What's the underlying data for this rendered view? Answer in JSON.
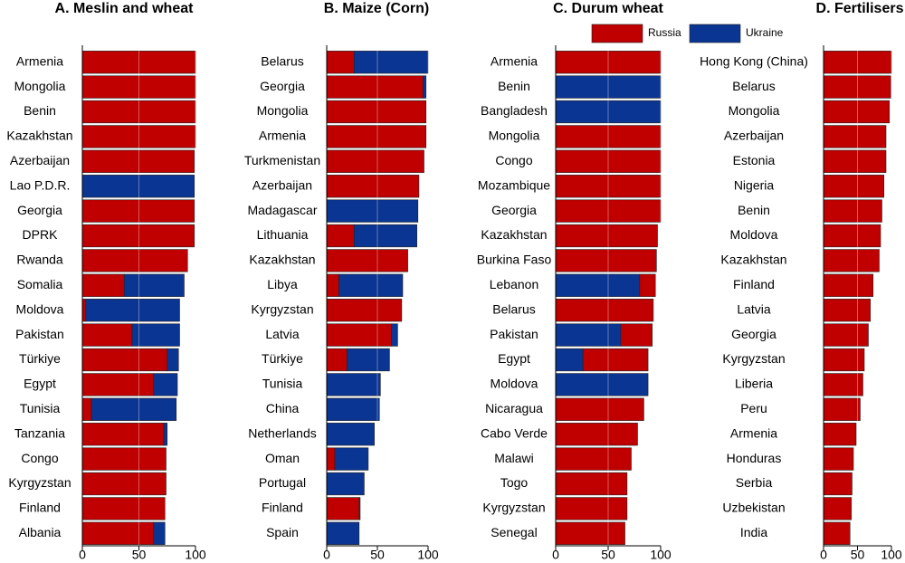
{
  "chart_data": [
    {
      "type": "bar",
      "orientation": "horizontal",
      "stacked": true,
      "title": "A. Meslin and wheat",
      "categories": [
        "Armenia",
        "Mongolia",
        "Benin",
        "Kazakhstan",
        "Azerbaijan",
        "Lao P.D.R.",
        "Georgia",
        "DPRK",
        "Rwanda",
        "Somalia",
        "Moldova",
        "Pakistan",
        "Türkiye",
        "Egypt",
        "Tunisia",
        "Tanzania",
        "Congo",
        "Kyrgyzstan",
        "Finland",
        "Albania"
      ],
      "series": [
        {
          "name": "Russia",
          "color": "#c00000",
          "values": [
            100,
            100,
            100,
            100,
            99,
            0,
            99,
            99,
            93,
            37,
            3,
            44,
            75,
            63,
            8,
            72,
            74,
            74,
            73,
            63
          ]
        },
        {
          "name": "Ukraine",
          "color": "#0b3592",
          "values": [
            0,
            0,
            0,
            0,
            0,
            99,
            0,
            0,
            0,
            53,
            83,
            42,
            10,
            21,
            75,
            3,
            0,
            0,
            0,
            10
          ]
        }
      ],
      "xlim": [
        0,
        100
      ],
      "xticks": [
        0,
        50,
        100
      ],
      "grid": true
    },
    {
      "type": "bar",
      "orientation": "horizontal",
      "stacked": true,
      "title": "B. Maize (Corn)",
      "categories": [
        "Belarus",
        "Georgia",
        "Mongolia",
        "Armenia",
        "Turkmenistan",
        "Azerbaijan",
        "Madagascar",
        "Lithuania",
        "Kazakhstan",
        "Libya",
        "Kyrgyzstan",
        "Latvia",
        "Türkiye",
        "Tunisia",
        "China",
        "Netherlands",
        "Oman",
        "Portugal",
        "Finland",
        "Spain"
      ],
      "series": [
        {
          "name": "Russia",
          "color": "#c00000",
          "values": [
            27,
            95,
            98,
            98,
            96,
            91,
            0,
            27,
            80,
            12,
            74,
            64,
            20,
            0,
            0,
            0,
            8,
            0,
            32,
            0
          ]
        },
        {
          "name": "Ukraine",
          "color": "#0b3592",
          "values": [
            73,
            3,
            0,
            0,
            0,
            0,
            90,
            62,
            0,
            63,
            0,
            6,
            42,
            53,
            52,
            47,
            33,
            37,
            1,
            32
          ]
        }
      ],
      "xlim": [
        0,
        100
      ],
      "xticks": [
        0,
        50,
        100
      ],
      "grid": true
    },
    {
      "type": "bar",
      "orientation": "horizontal",
      "stacked": true,
      "title": "C. Durum wheat",
      "categories": [
        "Armenia",
        "Benin",
        "Bangladesh",
        "Mongolia",
        "Congo",
        "Mozambique",
        "Georgia",
        "Kazakhstan",
        "Burkina Faso",
        "Lebanon",
        "Belarus",
        "Pakistan",
        "Egypt",
        "Moldova",
        "Nicaragua",
        "Cabo Verde",
        "Malawi",
        "Togo",
        "Kyrgyzstan",
        "Senegal"
      ],
      "series": [
        {
          "name": "Ukraine",
          "color": "#0b3592",
          "values": [
            0,
            100,
            100,
            0,
            0,
            0,
            0,
            0,
            0,
            80,
            0,
            62,
            26,
            88,
            0,
            0,
            0,
            0,
            0,
            0
          ]
        },
        {
          "name": "Russia",
          "color": "#c00000",
          "values": [
            100,
            0,
            0,
            100,
            100,
            100,
            100,
            97,
            96,
            15,
            93,
            30,
            62,
            0,
            84,
            78,
            72,
            68,
            68,
            66
          ]
        }
      ],
      "xlim": [
        0,
        100
      ],
      "xticks": [
        0,
        50,
        100
      ],
      "grid": true
    },
    {
      "type": "bar",
      "orientation": "horizontal",
      "stacked": true,
      "title": "D. Fertilisers",
      "categories": [
        "Hong Kong (China)",
        "Belarus",
        "Mongolia",
        "Azerbaijan",
        "Estonia",
        "Nigeria",
        "Benin",
        "Moldova",
        "Kazakhstan",
        "Finland",
        "Latvia",
        "Georgia",
        "Kyrgyzstan",
        "Liberia",
        "Peru",
        "Armenia",
        "Honduras",
        "Serbia",
        "Uzbekistan",
        "India"
      ],
      "series": [
        {
          "name": "Russia",
          "color": "#c00000",
          "values": [
            100,
            99,
            97,
            92,
            92,
            89,
            86,
            84,
            82,
            73,
            69,
            66,
            60,
            58,
            54,
            48,
            44,
            42,
            41,
            39
          ]
        }
      ],
      "xlim": [
        0,
        100
      ],
      "xticks": [
        0,
        50,
        100
      ],
      "grid": true
    }
  ]
}
